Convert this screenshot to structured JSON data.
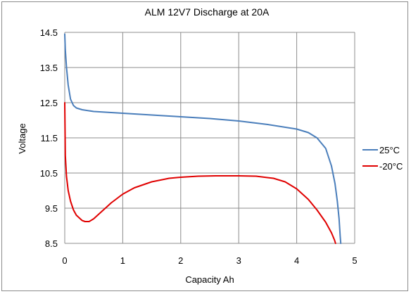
{
  "chart_data": {
    "type": "line",
    "title": "ALM 12V7 Discharge at 20A",
    "xlabel": "Capacity Ah",
    "ylabel": "Voltage",
    "xlim": [
      0,
      5
    ],
    "ylim": [
      8.5,
      14.5
    ],
    "xticks": [
      0,
      1,
      2,
      3,
      4,
      5
    ],
    "yticks": [
      8.5,
      9.5,
      10.5,
      11.5,
      12.5,
      13.5,
      14.5
    ],
    "xtick_labels": [
      "0",
      "1",
      "2",
      "3",
      "4",
      "5"
    ],
    "ytick_labels": [
      "8.5",
      "9.5",
      "10.5",
      "11.5",
      "12.5",
      "13.5",
      "14.5"
    ],
    "grid": true,
    "legend_position": "right",
    "series": [
      {
        "name": "25°C",
        "color": "#4a7ebb",
        "points": [
          [
            0.0,
            14.45
          ],
          [
            0.01,
            14.0
          ],
          [
            0.03,
            13.5
          ],
          [
            0.06,
            13.0
          ],
          [
            0.1,
            12.6
          ],
          [
            0.15,
            12.42
          ],
          [
            0.2,
            12.35
          ],
          [
            0.3,
            12.3
          ],
          [
            0.5,
            12.25
          ],
          [
            1.0,
            12.2
          ],
          [
            1.5,
            12.15
          ],
          [
            2.0,
            12.1
          ],
          [
            2.5,
            12.05
          ],
          [
            3.0,
            11.98
          ],
          [
            3.5,
            11.88
          ],
          [
            4.0,
            11.75
          ],
          [
            4.2,
            11.65
          ],
          [
            4.35,
            11.5
          ],
          [
            4.5,
            11.2
          ],
          [
            4.6,
            10.7
          ],
          [
            4.66,
            10.2
          ],
          [
            4.7,
            9.7
          ],
          [
            4.73,
            9.2
          ],
          [
            4.75,
            8.7
          ],
          [
            4.76,
            8.5
          ]
        ]
      },
      {
        "name": "-20°C",
        "color": "#e00000",
        "points": [
          [
            0.0,
            12.5
          ],
          [
            0.01,
            11.0
          ],
          [
            0.03,
            10.4
          ],
          [
            0.06,
            10.0
          ],
          [
            0.1,
            9.7
          ],
          [
            0.15,
            9.45
          ],
          [
            0.2,
            9.3
          ],
          [
            0.3,
            9.15
          ],
          [
            0.35,
            9.12
          ],
          [
            0.42,
            9.12
          ],
          [
            0.5,
            9.2
          ],
          [
            0.6,
            9.35
          ],
          [
            0.7,
            9.5
          ],
          [
            0.8,
            9.65
          ],
          [
            1.0,
            9.9
          ],
          [
            1.2,
            10.08
          ],
          [
            1.5,
            10.25
          ],
          [
            1.8,
            10.35
          ],
          [
            2.0,
            10.38
          ],
          [
            2.3,
            10.41
          ],
          [
            2.6,
            10.42
          ],
          [
            3.0,
            10.42
          ],
          [
            3.3,
            10.41
          ],
          [
            3.6,
            10.35
          ],
          [
            3.8,
            10.25
          ],
          [
            4.0,
            10.05
          ],
          [
            4.2,
            9.75
          ],
          [
            4.35,
            9.45
          ],
          [
            4.5,
            9.1
          ],
          [
            4.6,
            8.8
          ],
          [
            4.65,
            8.6
          ],
          [
            4.67,
            8.5
          ]
        ]
      }
    ]
  }
}
